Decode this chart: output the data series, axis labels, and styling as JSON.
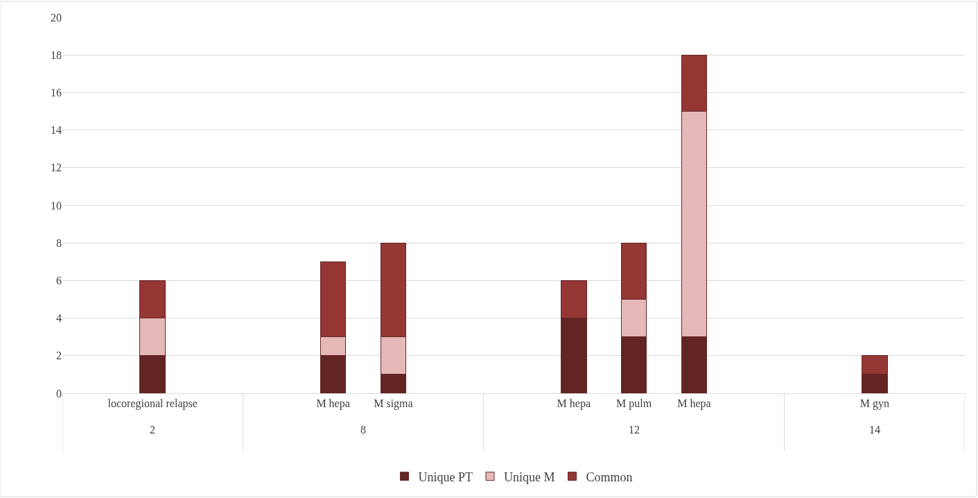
{
  "chart_data": {
    "type": "bar",
    "stacked": true,
    "categories": [
      null,
      "locoregional relapse",
      null,
      null,
      "M hepa",
      "M sigma",
      null,
      null,
      "M hepa",
      "M pulm",
      "M hepa",
      null,
      null,
      "M gyn",
      null
    ],
    "series": [
      {
        "name": "Unique PT",
        "color": "#632523",
        "values": [
          null,
          2,
          null,
          null,
          2,
          1,
          null,
          null,
          4,
          3,
          3,
          null,
          null,
          1,
          null
        ]
      },
      {
        "name": "Unique M",
        "color": "#e6b9b8",
        "values": [
          null,
          2,
          null,
          null,
          1,
          2,
          null,
          null,
          0,
          2,
          12,
          null,
          null,
          0,
          null
        ]
      },
      {
        "name": "Common",
        "color": "#953735",
        "values": [
          null,
          2,
          null,
          null,
          4,
          5,
          null,
          null,
          2,
          3,
          3,
          null,
          null,
          1,
          null
        ]
      }
    ],
    "annotations": [
      "2",
      "8",
      "12",
      "14"
    ],
    "ylim": [
      0,
      20
    ],
    "yticks": [
      0,
      2,
      4,
      6,
      8,
      10,
      12,
      14,
      16,
      18,
      20
    ],
    "grid": "y",
    "legend": "bottom"
  }
}
